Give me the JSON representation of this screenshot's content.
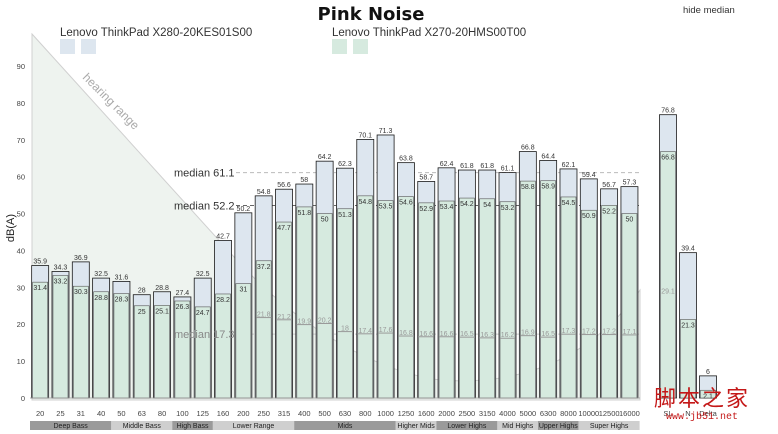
{
  "header": {
    "hide_median_label": "hide median"
  },
  "watermark": {
    "main": "脚本之家",
    "url": "www.jb51.net"
  },
  "colors": {
    "device1_fill": "#dde6ef",
    "device2_fill": "#d6eadf",
    "bar_stroke": "#1a1a1a",
    "range_band": "#9a9a9a",
    "range_band_light": "#cfcfcf"
  },
  "chart_data": {
    "type": "bar",
    "title": "Pink Noise",
    "ylabel": "dB(A)",
    "ylim": [
      0,
      90
    ],
    "yticks": [
      0,
      10,
      20,
      30,
      40,
      50,
      60,
      70,
      80,
      90
    ],
    "categories": [
      "20",
      "25",
      "31",
      "40",
      "50",
      "63",
      "80",
      "100",
      "125",
      "160",
      "200",
      "250",
      "315",
      "400",
      "500",
      "630",
      "800",
      "1000",
      "1250",
      "1600",
      "2000",
      "2500",
      "3150",
      "4000",
      "5000",
      "6300",
      "8000",
      "10000",
      "12500",
      "16000"
    ],
    "series": [
      {
        "name": "Lenovo ThinkPad X280-20KES01S00",
        "values": [
          35.9,
          34.3,
          36.9,
          32.5,
          31.6,
          28,
          28.8,
          27.4,
          32.5,
          42.7,
          50.2,
          54.8,
          56.6,
          58,
          64.2,
          62.3,
          70.1,
          71.3,
          63.8,
          58.7,
          62.4,
          61.8,
          61.8,
          61.1,
          66.8,
          64.4,
          62.1,
          59.4,
          56.7,
          57.3
        ]
      },
      {
        "name": "Lenovo ThinkPad X270-20HMS00T00",
        "values": [
          31.4,
          33.2,
          30.3,
          28.8,
          28.3,
          25,
          25.1,
          26.3,
          24.7,
          28.2,
          31,
          37.2,
          47.7,
          51.8,
          50,
          51.3,
          54.8,
          53.5,
          54.6,
          52.9,
          53.4,
          54.2,
          54,
          53.2,
          58.8,
          58.9,
          54.5,
          50.9,
          52.2,
          50
        ]
      },
      {
        "name": "",
        "values": [
          null,
          null,
          null,
          null,
          null,
          null,
          null,
          null,
          null,
          null,
          null,
          21.8,
          21.2,
          19.9,
          20.2,
          18,
          17.4,
          17.6,
          16.8,
          16.6,
          16.6,
          16.5,
          16.3,
          16.2,
          16.9,
          16.5,
          17.3,
          17.2,
          17.2,
          17.1
        ]
      }
    ],
    "summary": {
      "categories": [
        "SL",
        "N",
        "Delta"
      ],
      "device1_values": [
        76.8,
        39.4,
        6
      ],
      "device2_values": [
        66.8,
        21.3,
        2.1
      ],
      "device2_inner_value": 29.1
    },
    "medians": [
      {
        "label": "median 61.1",
        "value": 61.1
      },
      {
        "label": "median 52.2",
        "value": 52.2
      },
      {
        "label": "median 17.3",
        "value": 17.3
      }
    ],
    "hearing_range_label": "hearing range",
    "frequency_ranges": [
      {
        "label": "Deep Bass",
        "start": 0,
        "end": 3
      },
      {
        "label": "Middle Bass",
        "start": 4,
        "end": 6
      },
      {
        "label": "High Bass",
        "start": 7,
        "end": 8
      },
      {
        "label": "Lower Range",
        "start": 9,
        "end": 12
      },
      {
        "label": "Mids",
        "start": 13,
        "end": 17
      },
      {
        "label": "Higher Mids",
        "start": 18,
        "end": 19
      },
      {
        "label": "Lower Highs",
        "start": 20,
        "end": 22
      },
      {
        "label": "Mid Highs",
        "start": 23,
        "end": 24
      },
      {
        "label": "Upper Highs",
        "start": 25,
        "end": 26
      },
      {
        "label": "Super Highs",
        "start": 27,
        "end": 29
      }
    ]
  }
}
